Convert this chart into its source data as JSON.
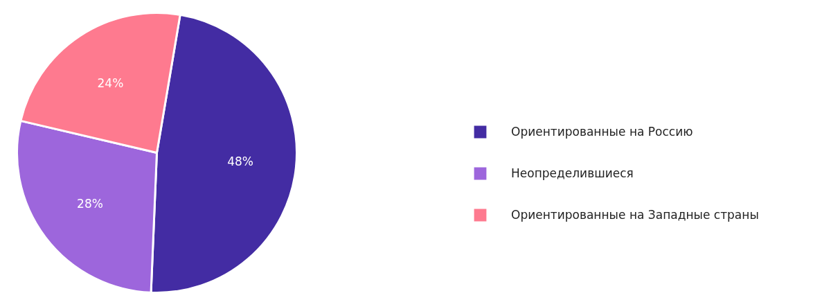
{
  "chart_data": {
    "type": "pie",
    "categories": [
      "Ориентированные на Россию",
      "Неопределившиеся",
      "Ориентированные на Западные страны"
    ],
    "values": [
      48,
      28,
      24
    ],
    "colors": [
      "#432ca3",
      "#9d66dc",
      "#fe7a8f"
    ],
    "value_labels": [
      "48%",
      "28%",
      "24%"
    ],
    "legend": "right"
  }
}
